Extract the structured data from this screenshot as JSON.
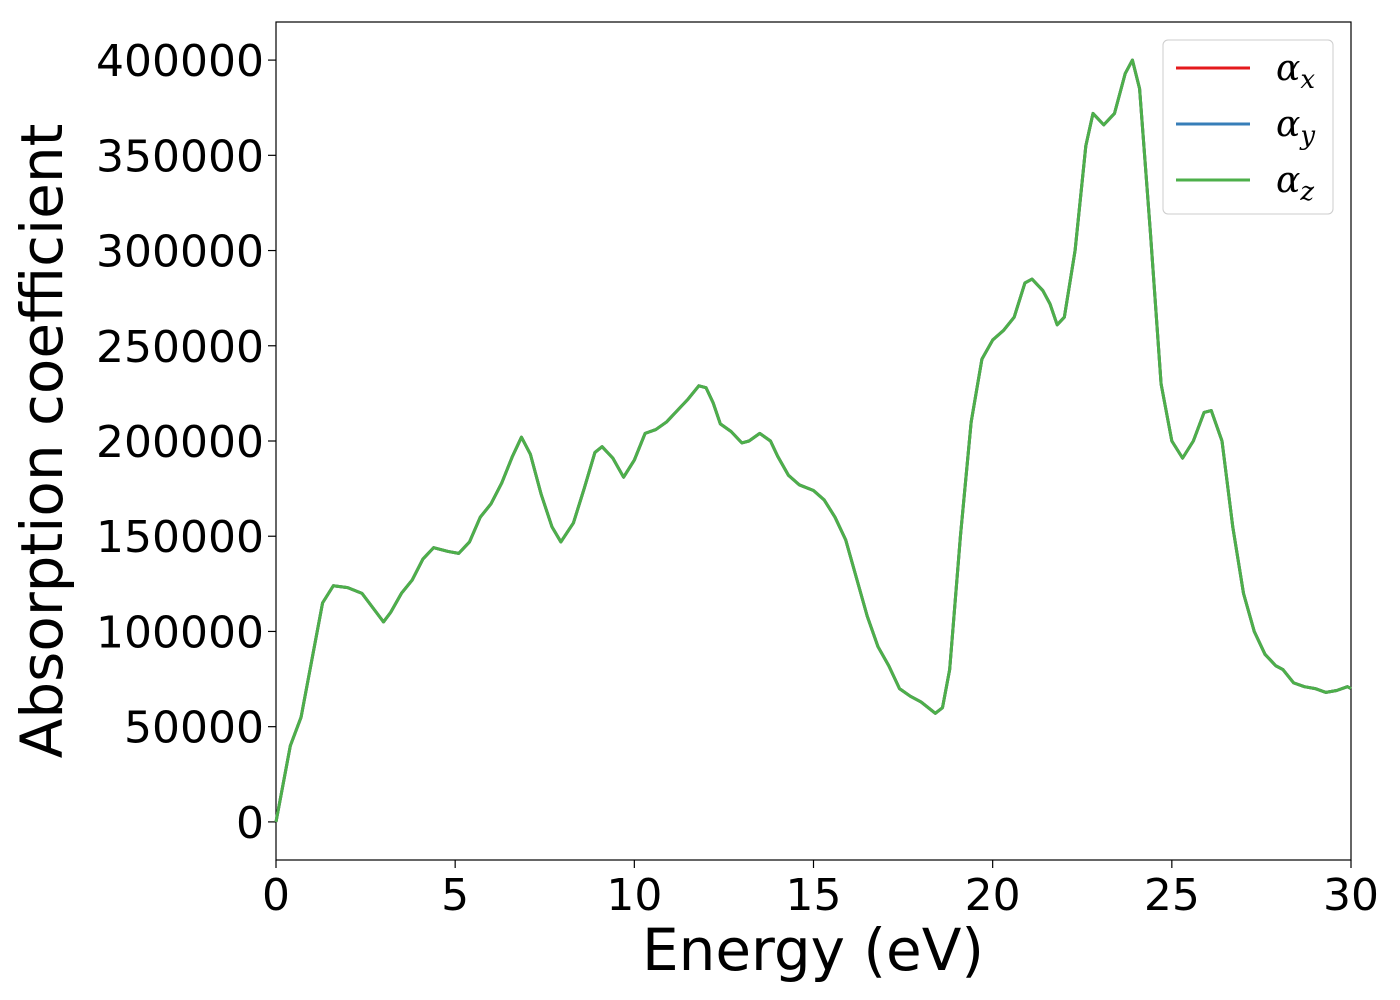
{
  "chart_data": {
    "type": "line",
    "xlabel": "Energy (eV)",
    "ylabel": "Absorption coefficient",
    "x": [
      0,
      0.2,
      0.4,
      0.7,
      1.0,
      1.3,
      1.6,
      2.0,
      2.4,
      2.8,
      3.0,
      3.2,
      3.5,
      3.8,
      4.1,
      4.4,
      4.8,
      5.1,
      5.4,
      5.7,
      6.0,
      6.3,
      6.6,
      6.85,
      7.1,
      7.4,
      7.7,
      7.95,
      8.3,
      8.6,
      8.9,
      9.1,
      9.4,
      9.7,
      10.0,
      10.3,
      10.6,
      10.9,
      11.2,
      11.5,
      11.8,
      12.0,
      12.2,
      12.4,
      12.7,
      13.0,
      13.2,
      13.5,
      13.8,
      14.0,
      14.3,
      14.6,
      15.0,
      15.3,
      15.6,
      15.9,
      16.2,
      16.5,
      16.8,
      17.1,
      17.4,
      17.7,
      18.0,
      18.4,
      18.6,
      18.8,
      19.1,
      19.4,
      19.7,
      20.0,
      20.3,
      20.6,
      20.9,
      21.1,
      21.4,
      21.6,
      21.8,
      22.0,
      22.3,
      22.6,
      22.8,
      23.1,
      23.4,
      23.7,
      23.9,
      24.1,
      24.4,
      24.7,
      25.0,
      25.3,
      25.6,
      25.9,
      26.1,
      26.4,
      26.7,
      27.0,
      27.3,
      27.6,
      27.9,
      28.1,
      28.4,
      28.7,
      29.0,
      29.3,
      29.6,
      29.9,
      30.0
    ],
    "series": [
      {
        "name": "αx",
        "color": "#e41a1c",
        "values": [
          0,
          20000,
          40000,
          55000,
          85000,
          115000,
          124000,
          123000,
          120000,
          110000,
          105000,
          110000,
          120000,
          127000,
          138000,
          144000,
          142000,
          141000,
          147000,
          160000,
          167000,
          178000,
          192000,
          202000,
          193000,
          172000,
          155000,
          147000,
          157000,
          175000,
          194000,
          197000,
          191000,
          181000,
          190000,
          204000,
          206000,
          210000,
          216000,
          222000,
          229000,
          228000,
          220000,
          209000,
          205000,
          199000,
          200000,
          204000,
          200000,
          192000,
          182000,
          177000,
          174000,
          169000,
          160000,
          148000,
          128000,
          108000,
          92000,
          82000,
          70000,
          66000,
          63000,
          57000,
          60000,
          80000,
          150000,
          210000,
          243000,
          253000,
          258000,
          265000,
          283000,
          285000,
          279000,
          272000,
          261000,
          265000,
          300000,
          355000,
          372000,
          366000,
          372000,
          393000,
          400000,
          385000,
          310000,
          230000,
          200000,
          191000,
          200000,
          215000,
          216000,
          200000,
          155000,
          120000,
          100000,
          88000,
          82000,
          80000,
          73000,
          71000,
          70000,
          68000,
          69000,
          71000,
          70000
        ]
      },
      {
        "name": "αy",
        "color": "#377eb8",
        "values": [
          0,
          20000,
          40000,
          55000,
          85000,
          115000,
          124000,
          123000,
          120000,
          110000,
          105000,
          110000,
          120000,
          127000,
          138000,
          144000,
          142000,
          141000,
          147000,
          160000,
          167000,
          178000,
          192000,
          202000,
          193000,
          172000,
          155000,
          147000,
          157000,
          175000,
          194000,
          197000,
          191000,
          181000,
          190000,
          204000,
          206000,
          210000,
          216000,
          222000,
          229000,
          228000,
          220000,
          209000,
          205000,
          199000,
          200000,
          204000,
          200000,
          192000,
          182000,
          177000,
          174000,
          169000,
          160000,
          148000,
          128000,
          108000,
          92000,
          82000,
          70000,
          66000,
          63000,
          57000,
          60000,
          80000,
          150000,
          210000,
          243000,
          253000,
          258000,
          265000,
          283000,
          285000,
          279000,
          272000,
          261000,
          265000,
          300000,
          355000,
          372000,
          366000,
          372000,
          393000,
          400000,
          385000,
          310000,
          230000,
          200000,
          191000,
          200000,
          215000,
          216000,
          200000,
          155000,
          120000,
          100000,
          88000,
          82000,
          80000,
          73000,
          71000,
          70000,
          68000,
          69000,
          71000,
          70000
        ]
      },
      {
        "name": "αz",
        "color": "#4daf4a",
        "values": [
          0,
          20000,
          40000,
          55000,
          85000,
          115000,
          124000,
          123000,
          120000,
          110000,
          105000,
          110000,
          120000,
          127000,
          138000,
          144000,
          142000,
          141000,
          147000,
          160000,
          167000,
          178000,
          192000,
          202000,
          193000,
          172000,
          155000,
          147000,
          157000,
          175000,
          194000,
          197000,
          191000,
          181000,
          190000,
          204000,
          206000,
          210000,
          216000,
          222000,
          229000,
          228000,
          220000,
          209000,
          205000,
          199000,
          200000,
          204000,
          200000,
          192000,
          182000,
          177000,
          174000,
          169000,
          160000,
          148000,
          128000,
          108000,
          92000,
          82000,
          70000,
          66000,
          63000,
          57000,
          60000,
          80000,
          150000,
          210000,
          243000,
          253000,
          258000,
          265000,
          283000,
          285000,
          279000,
          272000,
          261000,
          265000,
          300000,
          355000,
          372000,
          366000,
          372000,
          393000,
          400000,
          385000,
          310000,
          230000,
          200000,
          191000,
          200000,
          215000,
          216000,
          200000,
          155000,
          120000,
          100000,
          88000,
          82000,
          80000,
          73000,
          71000,
          70000,
          68000,
          69000,
          71000,
          70000
        ]
      }
    ],
    "xlim": [
      0,
      30
    ],
    "xticks": [
      0,
      5,
      10,
      15,
      20,
      25,
      30
    ],
    "ylim": [
      -20000,
      420000
    ],
    "yticks": [
      0,
      50000,
      100000,
      150000,
      200000,
      250000,
      300000,
      350000,
      400000
    ],
    "grid": false,
    "legend": "upper right"
  }
}
